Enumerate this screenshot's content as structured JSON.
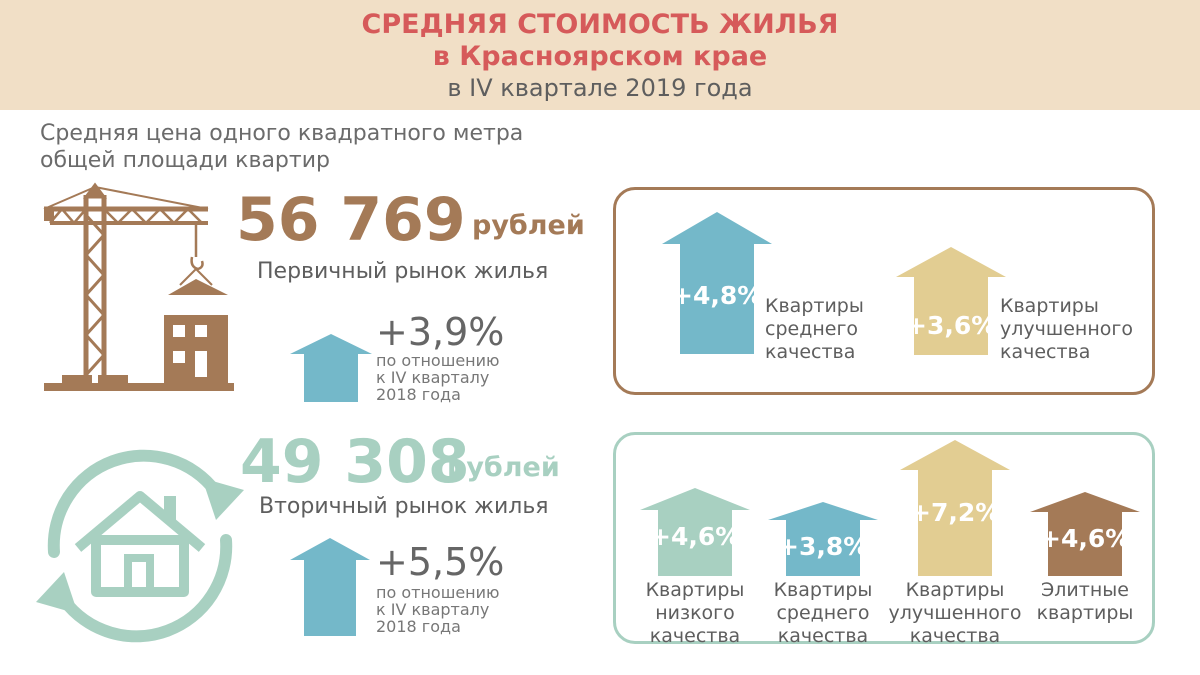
{
  "header": {
    "title_line1": "СРЕДНЯЯ СТОИМОСТЬ ЖИЛЬЯ",
    "title_line2": "в Красноярском крае",
    "title_line3": "в IV квартале 2019 года"
  },
  "subtitle": {
    "line1": "Средняя цена одного квадратного метра",
    "line2": "общей площади квартир"
  },
  "primary": {
    "price": "56 769",
    "unit": "рублей",
    "label": "Первичный рынок жилья",
    "change": "+3,9%",
    "note_line1": "по отношению",
    "note_line2": "к IV кварталу",
    "note_line3": "2018 года",
    "categories": [
      {
        "value": "+4,8%",
        "label_line1": "Квартиры",
        "label_line2": "среднего",
        "label_line3": "качества",
        "color": "#74b8c9"
      },
      {
        "value": "+3,6%",
        "label_line1": "Квартиры",
        "label_line2": "улучшенного",
        "label_line3": "качества",
        "color": "#e2cd92"
      }
    ]
  },
  "secondary": {
    "price": "49 308",
    "unit": "рублей",
    "label": "Вторичный рынок жилья",
    "change": "+5,5%",
    "note_line1": "по отношению",
    "note_line2": "к IV кварталу",
    "note_line3": "2018 года",
    "categories": [
      {
        "value": "+4,6%",
        "label_line1": "Квартиры",
        "label_line2": "низкого",
        "label_line3": "качества",
        "color": "#a8d0c1"
      },
      {
        "value": "+3,8%",
        "label_line1": "Квартиры",
        "label_line2": "среднего",
        "label_line3": "качества",
        "color": "#74b8c9"
      },
      {
        "value": "+7,2%",
        "label_line1": "Квартиры",
        "label_line2": "улучшенного",
        "label_line3": "качества",
        "color": "#e2cd92"
      },
      {
        "value": "+4,6%",
        "label_line1": "Элитные",
        "label_line2": "квартиры",
        "color": "#a47a57"
      }
    ]
  },
  "colors": {
    "brown": "#a47a57",
    "mint": "#a8d0c1",
    "blue": "#74b8c9",
    "sand": "#e2cd92",
    "title_red": "#d65a5a",
    "header_bg": "#f1dfc6"
  },
  "icons": {
    "primary": "crane-building-icon",
    "secondary": "house-recycle-icon"
  }
}
